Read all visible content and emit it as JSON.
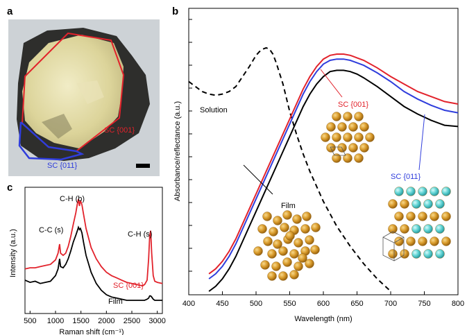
{
  "panel_labels": {
    "a": "a",
    "b": "b",
    "c": "c"
  },
  "photo": {
    "labels": {
      "sc001": "SC {001}",
      "sc011": "SC {011}"
    },
    "colors": {
      "sc001": "#e2222b",
      "sc011": "#2f3ddc"
    }
  },
  "chart_data": [
    {
      "panel": "b",
      "type": "line",
      "title": "",
      "xlabel": "Wavelength (nm)",
      "ylabel": "Absorbance/reflectance (a.u.)",
      "xlim": [
        400,
        800
      ],
      "xticks": [
        400,
        450,
        500,
        550,
        600,
        650,
        700,
        750,
        800
      ],
      "yticks_labeled": false,
      "grid": false,
      "series": [
        {
          "name": "Solution",
          "color": "#000000",
          "dashed": true,
          "x": [
            400,
            410,
            420,
            430,
            440,
            450,
            460,
            470,
            480,
            490,
            500,
            505,
            510,
            515,
            520,
            525,
            530,
            540,
            550,
            560,
            570,
            580,
            590,
            600,
            610,
            620,
            640,
            660,
            680,
            700
          ],
          "y": [
            0.84,
            0.82,
            0.8,
            0.79,
            0.785,
            0.79,
            0.8,
            0.82,
            0.86,
            0.9,
            0.945,
            0.96,
            0.97,
            0.975,
            0.97,
            0.95,
            0.915,
            0.83,
            0.72,
            0.63,
            0.55,
            0.48,
            0.42,
            0.36,
            0.31,
            0.26,
            0.18,
            0.11,
            0.05,
            0.0
          ]
        },
        {
          "name": "SC {001}",
          "color": "#e2222b",
          "dashed": false,
          "x": [
            430,
            440,
            450,
            460,
            470,
            480,
            490,
            500,
            510,
            520,
            530,
            540,
            550,
            560,
            570,
            580,
            590,
            600,
            610,
            620,
            630,
            640,
            650,
            660,
            680,
            700,
            720,
            740,
            760,
            780,
            800
          ],
          "y": [
            0.07,
            0.09,
            0.12,
            0.16,
            0.21,
            0.27,
            0.33,
            0.39,
            0.45,
            0.51,
            0.57,
            0.63,
            0.69,
            0.75,
            0.81,
            0.86,
            0.9,
            0.93,
            0.945,
            0.95,
            0.95,
            0.945,
            0.935,
            0.925,
            0.895,
            0.86,
            0.83,
            0.8,
            0.78,
            0.76,
            0.75
          ]
        },
        {
          "name": "SC {011}",
          "color": "#2f3ddc",
          "dashed": false,
          "x": [
            430,
            440,
            450,
            460,
            470,
            480,
            490,
            500,
            510,
            520,
            530,
            540,
            550,
            560,
            570,
            580,
            590,
            600,
            610,
            620,
            630,
            640,
            650,
            660,
            680,
            700,
            720,
            740,
            760,
            780,
            800
          ],
          "y": [
            0.05,
            0.07,
            0.1,
            0.14,
            0.19,
            0.25,
            0.31,
            0.37,
            0.43,
            0.49,
            0.55,
            0.61,
            0.67,
            0.73,
            0.79,
            0.84,
            0.88,
            0.91,
            0.925,
            0.93,
            0.93,
            0.925,
            0.915,
            0.905,
            0.875,
            0.84,
            0.8,
            0.77,
            0.745,
            0.725,
            0.715
          ]
        },
        {
          "name": "Film",
          "color": "#000000",
          "dashed": false,
          "x": [
            430,
            440,
            450,
            460,
            470,
            480,
            490,
            500,
            510,
            520,
            530,
            540,
            550,
            560,
            570,
            580,
            590,
            600,
            610,
            620,
            630,
            640,
            650,
            660,
            680,
            700,
            720,
            740,
            760,
            780,
            800
          ],
          "y": [
            0.0,
            0.02,
            0.05,
            0.09,
            0.14,
            0.2,
            0.26,
            0.32,
            0.38,
            0.44,
            0.5,
            0.56,
            0.62,
            0.68,
            0.74,
            0.79,
            0.83,
            0.86,
            0.88,
            0.885,
            0.885,
            0.88,
            0.87,
            0.855,
            0.82,
            0.78,
            0.74,
            0.71,
            0.685,
            0.665,
            0.66
          ]
        }
      ],
      "annotations": [
        "Solution",
        "Film",
        "SC {001}",
        "SC {011}"
      ]
    },
    {
      "panel": "c",
      "type": "line",
      "title": "",
      "xlabel": "Raman shift (cm⁻¹)",
      "ylabel": "Intensity (a.u.)",
      "xlim": [
        400,
        3100
      ],
      "xticks": [
        500,
        1000,
        1500,
        2000,
        2500,
        3000
      ],
      "yticks_labeled": false,
      "grid": false,
      "series": [
        {
          "name": "SC {001}",
          "color": "#e2222b",
          "x": [
            400,
            500,
            600,
            700,
            800,
            900,
            1000,
            1050,
            1080,
            1100,
            1150,
            1200,
            1250,
            1300,
            1350,
            1400,
            1430,
            1450,
            1470,
            1490,
            1520,
            1550,
            1600,
            1700,
            1800,
            1900,
            2000,
            2100,
            2200,
            2300,
            2400,
            2500,
            2600,
            2700,
            2750,
            2800,
            2830,
            2850,
            2870,
            2890,
            2920,
            2950,
            3000,
            3100
          ],
          "y": [
            0.36,
            0.37,
            0.37,
            0.38,
            0.39,
            0.4,
            0.44,
            0.5,
            0.58,
            0.5,
            0.48,
            0.5,
            0.56,
            0.65,
            0.76,
            0.86,
            0.94,
            0.98,
            0.92,
            0.97,
            0.93,
            0.85,
            0.72,
            0.55,
            0.45,
            0.38,
            0.33,
            0.3,
            0.28,
            0.26,
            0.24,
            0.23,
            0.22,
            0.21,
            0.22,
            0.26,
            0.45,
            0.65,
            0.7,
            0.5,
            0.3,
            0.25,
            0.24,
            0.23
          ]
        },
        {
          "name": "Film",
          "color": "#000000",
          "x": [
            400,
            500,
            600,
            700,
            800,
            900,
            1000,
            1050,
            1080,
            1100,
            1150,
            1200,
            1250,
            1300,
            1350,
            1400,
            1430,
            1450,
            1470,
            1490,
            1520,
            1550,
            1600,
            1700,
            1800,
            1900,
            2000,
            2100,
            2200,
            2300,
            2400,
            2500,
            2600,
            2700,
            2750,
            2800,
            2830,
            2850,
            2870,
            2890,
            2920,
            2950,
            3000,
            3100
          ],
          "y": [
            0.26,
            0.24,
            0.25,
            0.23,
            0.24,
            0.25,
            0.3,
            0.36,
            0.45,
            0.38,
            0.37,
            0.4,
            0.45,
            0.52,
            0.6,
            0.66,
            0.7,
            0.73,
            0.71,
            0.72,
            0.68,
            0.6,
            0.48,
            0.33,
            0.23,
            0.17,
            0.13,
            0.11,
            0.1,
            0.09,
            0.08,
            0.08,
            0.08,
            0.08,
            0.08,
            0.09,
            0.1,
            0.12,
            0.12,
            0.11,
            0.09,
            0.08,
            0.08,
            0.08
          ]
        }
      ],
      "annotations": [
        "C-C (s)",
        "C-H (b)",
        "C-H (s)",
        "SC {001}",
        "Film"
      ]
    }
  ]
}
